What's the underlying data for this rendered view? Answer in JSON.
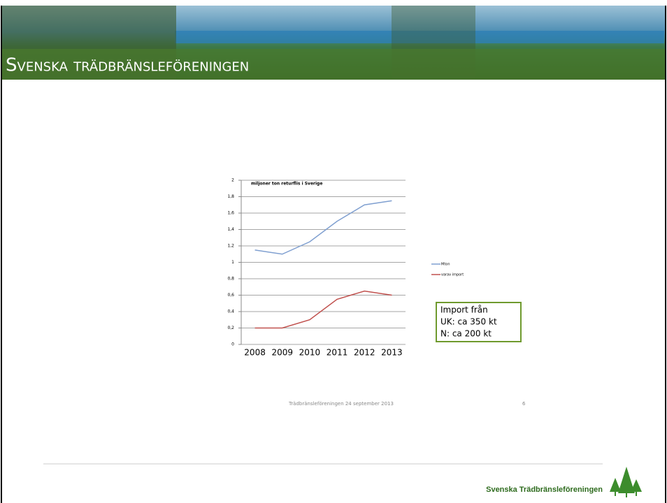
{
  "header": {
    "title": "Svenska trädbränsleföreningen"
  },
  "chart_data": {
    "type": "line",
    "title": "miljoner ton returflis i Sverige",
    "categories": [
      "2008",
      "2009",
      "2010",
      "2011",
      "2012",
      "2013"
    ],
    "series": [
      {
        "name": "Mton",
        "color": "#7f9fd0",
        "values": [
          1.15,
          1.1,
          1.25,
          1.5,
          1.7,
          1.75
        ]
      },
      {
        "name": "varav import",
        "color": "#c0504d",
        "values": [
          0.2,
          0.2,
          0.3,
          0.55,
          0.65,
          0.6
        ]
      }
    ],
    "ylim": [
      0,
      2
    ],
    "yticks": [
      0,
      {
        "value": 0.2,
        "label": "0,2"
      },
      {
        "value": 0.4,
        "label": "0,4"
      },
      {
        "value": 0.6,
        "label": "0,6"
      },
      {
        "value": 0.8,
        "label": "0,8"
      },
      1,
      {
        "value": 1.2,
        "label": "1,2"
      },
      {
        "value": 1.4,
        "label": "1,4"
      },
      {
        "value": 1.6,
        "label": "1,6"
      },
      {
        "value": 1.8,
        "label": "1,8"
      },
      2
    ],
    "grid": true,
    "annotation": [
      "Import från",
      "UK: ca 350 kt",
      "N: ca 200 kt"
    ]
  },
  "slide_footer": {
    "text": "Trädbränsleföreningen 24 september 2013",
    "page": "6"
  },
  "footer": {
    "brand": "Svenska Trädbränsleföreningen"
  }
}
